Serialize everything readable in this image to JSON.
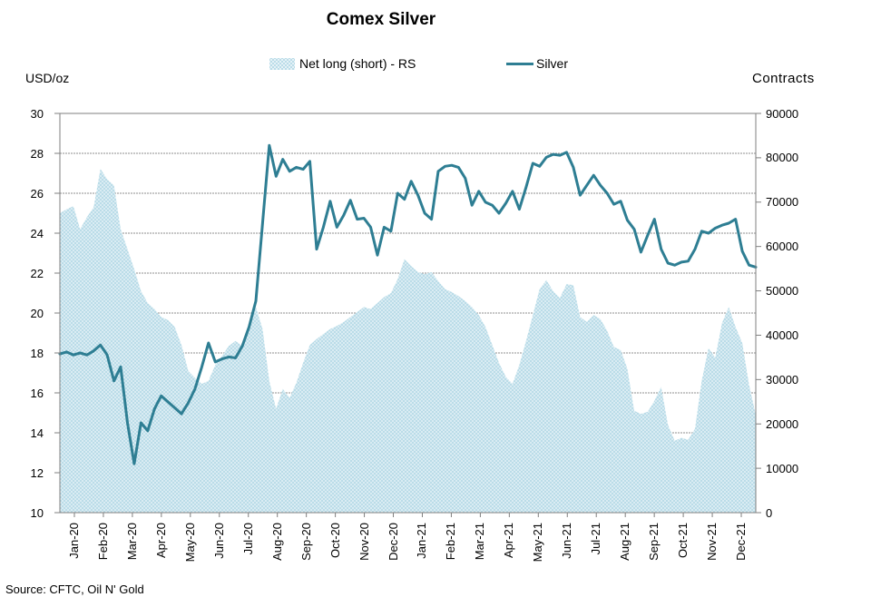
{
  "title": "Comex Silver",
  "legend": {
    "area_label": "Net long (short) - RS",
    "line_label": "Silver"
  },
  "axes": {
    "left_title": "USD/oz",
    "right_title": "Contracts",
    "left_ticks": [
      30,
      28,
      26,
      24,
      22,
      20,
      18,
      16,
      14,
      12,
      10
    ],
    "right_ticks": [
      90000,
      80000,
      70000,
      60000,
      50000,
      40000,
      30000,
      20000,
      10000,
      0
    ]
  },
  "source": "Source: CFTC, Oil N' Gold",
  "colors": {
    "line": "#2e7e93",
    "area": "#badce8",
    "grid": "#8f8f8f",
    "border": "#7f7f7f",
    "text": "#000000"
  },
  "chart_data": {
    "type": "line+area",
    "title": "Comex Silver",
    "x_labels": [
      "Jan-20",
      "Feb-20",
      "Mar-20",
      "Apr-20",
      "May-20",
      "Jun-20",
      "Jul-20",
      "Aug-20",
      "Sep-20",
      "Oct-20",
      "Nov-20",
      "Dec-20",
      "Jan-21",
      "Feb-21",
      "Mar-21",
      "Apr-21",
      "May-21",
      "Jun-21",
      "Jul-21",
      "Aug-21",
      "Sep-21",
      "Oct-21",
      "Nov-21",
      "Dec-21"
    ],
    "left_axis": {
      "label": "USD/oz",
      "range": [
        10,
        30
      ]
    },
    "right_axis": {
      "label": "Contracts",
      "range": [
        0,
        90000
      ]
    },
    "grid": true,
    "legend_position": "top",
    "series": [
      {
        "name": "Net long (short) - RS",
        "type": "area",
        "axis": "right",
        "values": [
          67500,
          68400,
          69100,
          63900,
          66600,
          68850,
          77500,
          75150,
          73800,
          63900,
          59400,
          54900,
          49950,
          47250,
          45900,
          44100,
          43425,
          41850,
          37800,
          31950,
          30375,
          29025,
          29700,
          33300,
          35325,
          37575,
          38700,
          37575,
          41400,
          46350,
          41400,
          29700,
          23400,
          27900,
          25875,
          29250,
          33750,
          37800,
          39150,
          40275,
          41400,
          42075,
          42975,
          44100,
          45225,
          46350,
          45900,
          47250,
          48600,
          49500,
          52650,
          57150,
          55575,
          54225,
          53775,
          54225,
          52200,
          50400,
          49725,
          48825,
          47700,
          46350,
          44550,
          41850,
          37800,
          33750,
          30600,
          29025,
          33300,
          38700,
          44550,
          50400,
          52425,
          49950,
          48375,
          51525,
          51300,
          44100,
          42975,
          44550,
          43650,
          40950,
          37350,
          36675,
          32400,
          22950,
          22275,
          22725,
          25200,
          28350,
          19800,
          16200,
          16875,
          16425,
          18900,
          29700,
          37125,
          34875,
          42750,
          46350,
          41850,
          38250,
          28800,
          22050
        ]
      },
      {
        "name": "Silver",
        "type": "line",
        "axis": "left",
        "values": [
          17.95,
          18.05,
          17.9,
          18.0,
          17.9,
          18.1,
          18.4,
          17.9,
          16.6,
          17.3,
          14.5,
          12.45,
          14.5,
          14.1,
          15.2,
          15.85,
          15.55,
          15.25,
          14.95,
          15.5,
          16.2,
          17.3,
          18.5,
          17.55,
          17.7,
          17.8,
          17.75,
          18.35,
          19.3,
          20.6,
          24.5,
          28.4,
          26.85,
          27.7,
          27.1,
          27.3,
          27.2,
          27.6,
          23.2,
          24.3,
          25.6,
          24.3,
          24.9,
          25.65,
          24.7,
          24.75,
          24.3,
          22.9,
          24.3,
          24.1,
          26.0,
          25.7,
          26.6,
          25.9,
          25.0,
          24.7,
          27.1,
          27.35,
          27.4,
          27.3,
          26.75,
          25.4,
          26.1,
          25.55,
          25.4,
          25.0,
          25.5,
          26.1,
          25.2,
          26.3,
          27.5,
          27.35,
          27.8,
          27.95,
          27.9,
          28.05,
          27.3,
          25.9,
          26.4,
          26.9,
          26.4,
          26.0,
          25.45,
          25.6,
          24.65,
          24.2,
          23.05,
          23.9,
          24.7,
          23.2,
          22.5,
          22.4,
          22.55,
          22.6,
          23.2,
          24.1,
          24.0,
          24.25,
          24.4,
          24.5,
          24.7,
          23.1,
          22.4,
          22.3
        ]
      }
    ]
  }
}
